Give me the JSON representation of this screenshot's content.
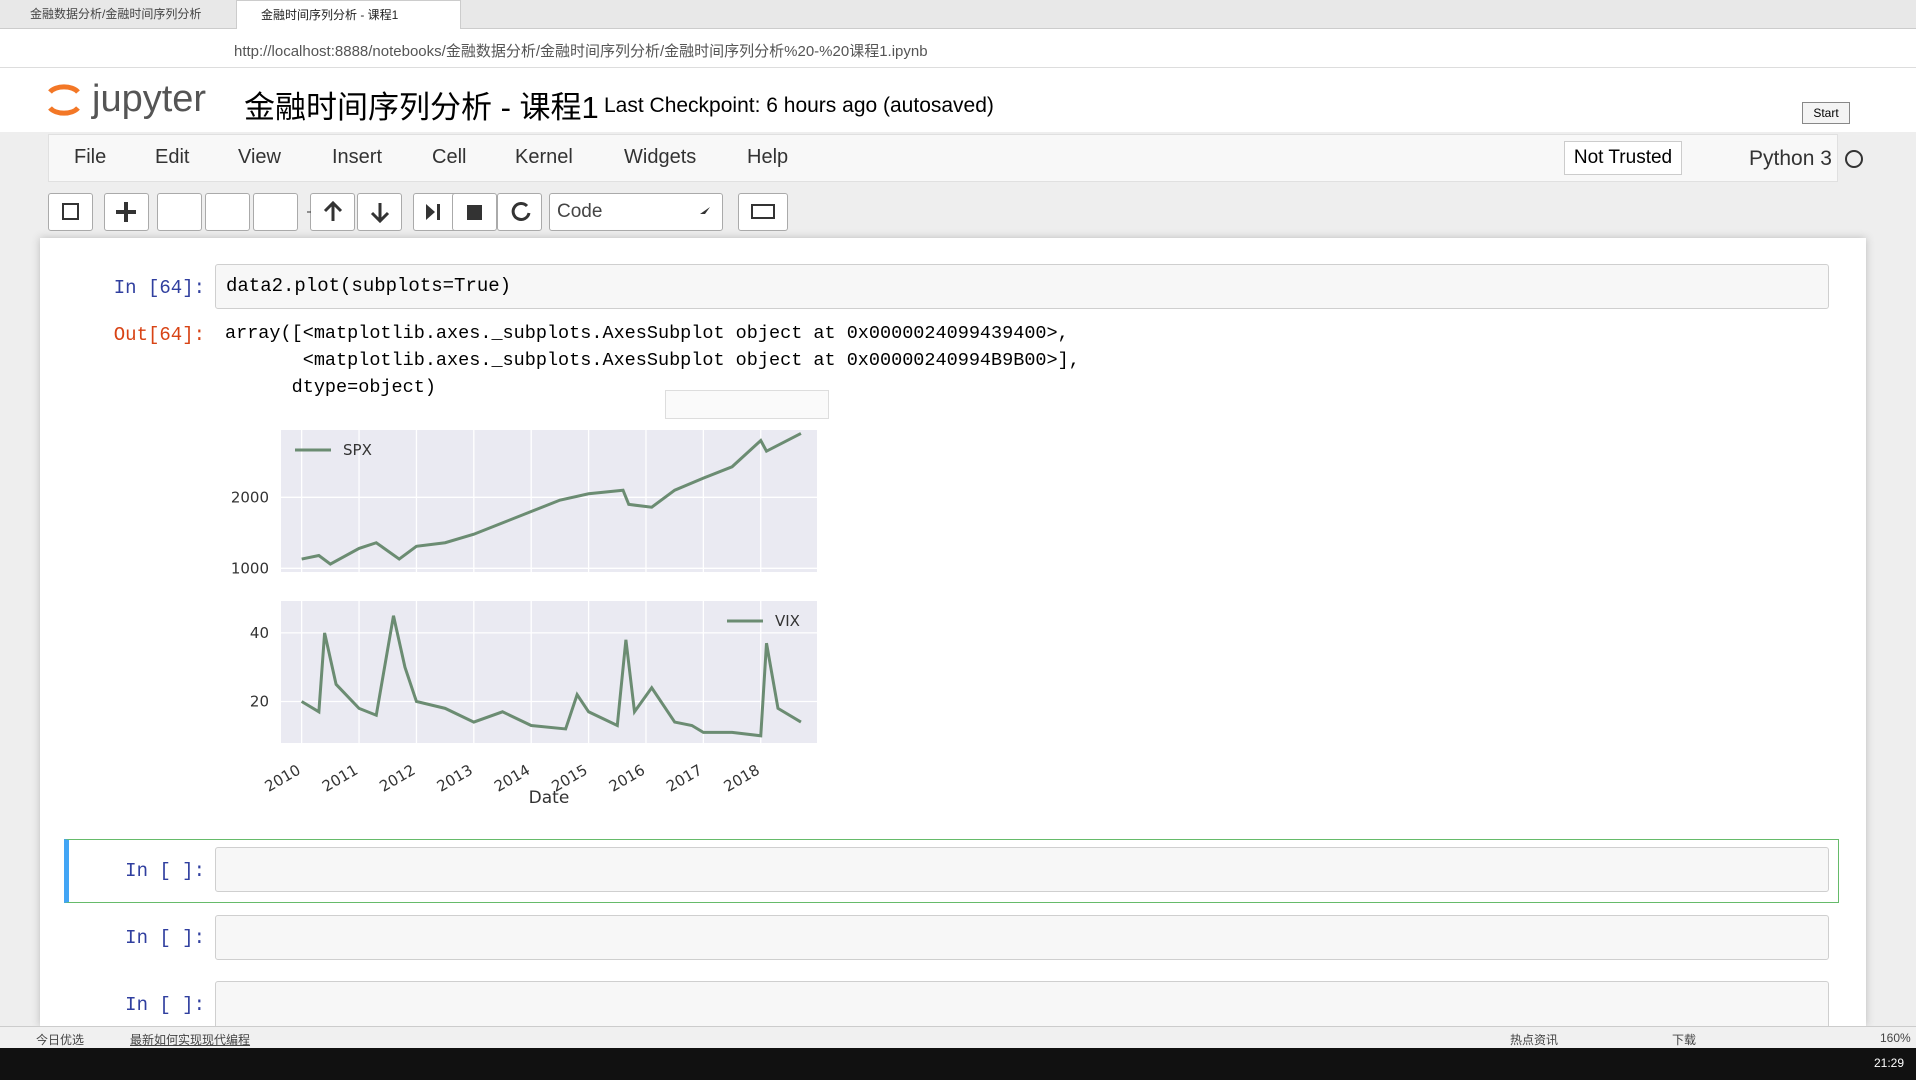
{
  "browser": {
    "tabs": [
      "金融数据分析/金融时间序列分析",
      "金融时间序列分析 - 课程1"
    ],
    "url": "http://localhost:8888/notebooks/金融数据分析/金融时间序列分析/金融时间序列分析%20-%20课程1.ipynb"
  },
  "header": {
    "logo": "jupyter",
    "title": "金融时间序列分析 - 课程1",
    "checkpoint": "Last Checkpoint: 6 hours ago (autosaved)",
    "start": "Start"
  },
  "menu": [
    "File",
    "Edit",
    "View",
    "Insert",
    "Cell",
    "Kernel",
    "Widgets",
    "Help"
  ],
  "trust": "Not Trusted",
  "kernel": "Python 3",
  "toolbar": {
    "cell_type": "Code"
  },
  "cells": [
    {
      "prompt": "In [64]:",
      "source": "data2.plot(subplots=True)",
      "out_prompt": "Out[64]:",
      "output": [
        "array([<matplotlib.axes._subplots.AxesSubplot object at 0x0000024099439400>,",
        "       <matplotlib.axes._subplots.AxesSubplot object at 0x00000240994B9B00>],",
        "      dtype=object)"
      ]
    },
    {
      "prompt": "In [ ]:"
    },
    {
      "prompt": "In [ ]:"
    },
    {
      "prompt": "In [ ]:"
    }
  ],
  "chart_data": [
    {
      "type": "line",
      "x": [
        2010.0,
        2010.3,
        2010.5,
        2011.0,
        2011.3,
        2011.7,
        2012.0,
        2012.5,
        2013.0,
        2013.5,
        2014.0,
        2014.5,
        2015.0,
        2015.6,
        2015.7,
        2016.1,
        2016.5,
        2017.0,
        2017.5,
        2018.0,
        2018.1,
        2018.7
      ],
      "series": [
        {
          "name": "SPX",
          "color": "#6b8c72",
          "values": [
            1130,
            1180,
            1060,
            1280,
            1360,
            1130,
            1310,
            1360,
            1480,
            1640,
            1800,
            1960,
            2050,
            2100,
            1900,
            1860,
            2100,
            2270,
            2430,
            2800,
            2650,
            2900
          ]
        }
      ],
      "xlim": [
        2009.64,
        2018.98
      ],
      "ylim": [
        948,
        2948
      ],
      "yticks": [
        1000,
        2000
      ],
      "grid": true,
      "legend": "upper left"
    },
    {
      "type": "line",
      "x": [
        2010.0,
        2010.3,
        2010.4,
        2010.6,
        2011.0,
        2011.3,
        2011.6,
        2011.8,
        2012.0,
        2012.5,
        2013.0,
        2013.5,
        2014.0,
        2014.6,
        2014.8,
        2015.0,
        2015.5,
        2015.65,
        2015.8,
        2016.1,
        2016.5,
        2016.8,
        2017.0,
        2017.5,
        2018.0,
        2018.1,
        2018.3,
        2018.7
      ],
      "series": [
        {
          "name": "VIX",
          "color": "#6b8c72",
          "values": [
            20,
            17,
            40,
            25,
            18,
            16,
            45,
            30,
            20,
            18,
            14,
            17,
            13,
            12,
            22,
            17,
            13,
            38,
            17,
            24,
            14,
            13,
            11,
            11,
            10,
            37,
            18,
            14
          ]
        }
      ],
      "xlim": [
        2009.64,
        2018.98
      ],
      "ylim": [
        7.9,
        49.3
      ],
      "xticks": [
        2010,
        2011,
        2012,
        2013,
        2014,
        2015,
        2016,
        2017,
        2018
      ],
      "yticks": [
        20,
        40
      ],
      "xlabel": "Date",
      "grid": true,
      "legend": "upper right"
    }
  ],
  "status": {
    "left": "今日优选",
    "news": "最新如何实现现代编程",
    "hot": "热点资讯",
    "download": "下载",
    "zoom": "160%"
  },
  "taskbar": {
    "time": "21:29"
  }
}
